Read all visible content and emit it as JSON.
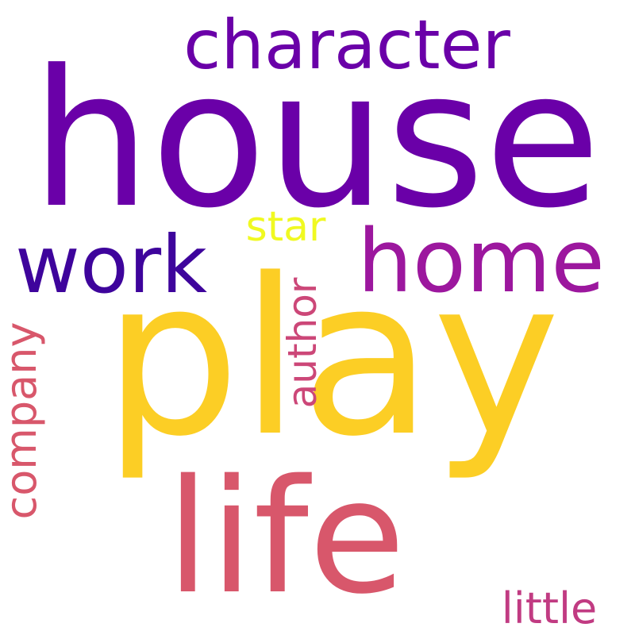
{
  "words": [
    {
      "key": "house",
      "text": "house",
      "color": "#6A00A8"
    },
    {
      "key": "play",
      "text": "play",
      "color": "#FCCE25"
    },
    {
      "key": "life",
      "text": "life",
      "color": "#D8576B"
    },
    {
      "key": "character",
      "text": "character",
      "color": "#6A00A8"
    },
    {
      "key": "home",
      "text": "home",
      "color": "#9C179E"
    },
    {
      "key": "work",
      "text": "work",
      "color": "#3E049C"
    },
    {
      "key": "star",
      "text": "star",
      "color": "#F0F921"
    },
    {
      "key": "author",
      "text": "author",
      "color": "#CC4778"
    },
    {
      "key": "company",
      "text": "company",
      "color": "#D8576B"
    },
    {
      "key": "little",
      "text": "little",
      "color": "#C13B82"
    }
  ]
}
